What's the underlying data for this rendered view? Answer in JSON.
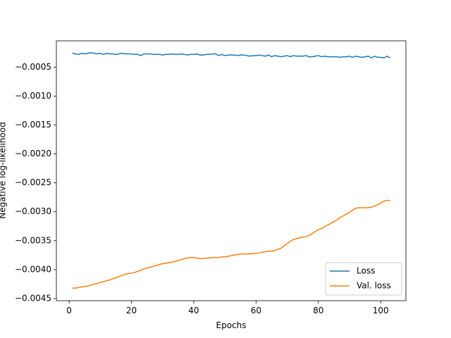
{
  "chart_data": {
    "type": "line",
    "xlabel": "Epochs",
    "ylabel": "Negative log-likelihood",
    "x": [
      1,
      2,
      3,
      4,
      5,
      6,
      7,
      8,
      9,
      10,
      11,
      12,
      13,
      14,
      15,
      16,
      17,
      18,
      19,
      20,
      21,
      22,
      23,
      24,
      25,
      26,
      27,
      28,
      29,
      30,
      31,
      32,
      33,
      34,
      35,
      36,
      37,
      38,
      39,
      40,
      41,
      42,
      43,
      44,
      45,
      46,
      47,
      48,
      49,
      50,
      51,
      52,
      53,
      54,
      55,
      56,
      57,
      58,
      59,
      60,
      61,
      62,
      63,
      64,
      65,
      66,
      67,
      68,
      69,
      70,
      71,
      72,
      73,
      74,
      75,
      76,
      77,
      78,
      79,
      80,
      81,
      82,
      83,
      84,
      85,
      86,
      87,
      88,
      89,
      90,
      91,
      92,
      93,
      94,
      95,
      96,
      97,
      98,
      99,
      100,
      101,
      102,
      103
    ],
    "series": [
      {
        "name": "Loss",
        "color": "#1f77b4",
        "values": [
          -0.00026,
          -0.00027,
          -0.00028,
          -0.00026,
          -0.00027,
          -0.00026,
          -0.00025,
          -0.00026,
          -0.00027,
          -0.00026,
          -0.00028,
          -0.00026,
          -0.00027,
          -0.00027,
          -0.00028,
          -0.00027,
          -0.00026,
          -0.00027,
          -0.00027,
          -0.00027,
          -0.00028,
          -0.00028,
          -0.0003,
          -0.00027,
          -0.00027,
          -0.00027,
          -0.00028,
          -0.00028,
          -0.00028,
          -0.00029,
          -0.00028,
          -0.00028,
          -0.00027,
          -0.00028,
          -0.00028,
          -0.00027,
          -0.00028,
          -0.00029,
          -0.00028,
          -0.00028,
          -0.00027,
          -0.00029,
          -0.00029,
          -0.00028,
          -0.00028,
          -0.00027,
          -0.00027,
          -0.0003,
          -0.00028,
          -0.0003,
          -0.00029,
          -0.00029,
          -0.00029,
          -0.0003,
          -0.00029,
          -0.00029,
          -0.0003,
          -0.00031,
          -0.0003,
          -0.0003,
          -0.00029,
          -0.0003,
          -0.00031,
          -0.00029,
          -0.00032,
          -0.0003,
          -0.00031,
          -0.00032,
          -0.00031,
          -0.0003,
          -0.00032,
          -0.0003,
          -0.00031,
          -0.00031,
          -0.00031,
          -0.0003,
          -0.00032,
          -0.00032,
          -0.00031,
          -0.0003,
          -0.00032,
          -0.00031,
          -0.00032,
          -0.00032,
          -0.00032,
          -0.00032,
          -0.00033,
          -0.00032,
          -0.00032,
          -0.00031,
          -0.00033,
          -0.00031,
          -0.00032,
          -0.00033,
          -0.00032,
          -0.00031,
          -0.00034,
          -0.00031,
          -0.00033,
          -0.00033,
          -0.00034,
          -0.00031,
          -0.00034
        ]
      },
      {
        "name": "Val. loss",
        "color": "#ff7f0e",
        "values": [
          -0.00432,
          -0.00432,
          -0.00431,
          -0.0043,
          -0.00429,
          -0.00428,
          -0.00427,
          -0.00425,
          -0.00424,
          -0.00422,
          -0.00421,
          -0.00419,
          -0.00418,
          -0.00416,
          -0.00414,
          -0.00412,
          -0.0041,
          -0.00408,
          -0.00407,
          -0.00406,
          -0.00405,
          -0.00403,
          -0.00401,
          -0.00399,
          -0.00397,
          -0.00396,
          -0.00394,
          -0.00393,
          -0.00391,
          -0.0039,
          -0.00389,
          -0.00388,
          -0.00387,
          -0.00386,
          -0.00384,
          -0.00383,
          -0.00381,
          -0.0038,
          -0.00379,
          -0.00379,
          -0.0038,
          -0.00381,
          -0.00381,
          -0.0038,
          -0.0038,
          -0.00379,
          -0.00379,
          -0.00379,
          -0.00378,
          -0.00378,
          -0.00377,
          -0.00376,
          -0.00375,
          -0.00374,
          -0.00373,
          -0.00373,
          -0.00373,
          -0.00373,
          -0.00372,
          -0.00372,
          -0.00371,
          -0.0037,
          -0.00369,
          -0.00368,
          -0.00368,
          -0.00367,
          -0.00365,
          -0.00363,
          -0.00359,
          -0.00355,
          -0.00351,
          -0.00348,
          -0.00346,
          -0.00345,
          -0.00344,
          -0.00343,
          -0.00341,
          -0.00338,
          -0.00334,
          -0.00331,
          -0.00329,
          -0.00326,
          -0.00323,
          -0.0032,
          -0.00317,
          -0.00314,
          -0.0031,
          -0.00307,
          -0.00304,
          -0.00301,
          -0.00297,
          -0.00294,
          -0.00293,
          -0.00293,
          -0.00293,
          -0.00293,
          -0.00292,
          -0.0029,
          -0.00288,
          -0.00285,
          -0.00282,
          -0.0028,
          -0.00281
        ]
      }
    ],
    "xlim": [
      -4.1,
      108.1
    ],
    "xticks": [
      0,
      20,
      40,
      60,
      80,
      100
    ],
    "ylim": [
      -0.004537,
      -4.5e-05
    ],
    "yticks": [
      {
        "value": -0.0005,
        "label": "−0.0005"
      },
      {
        "value": -0.001,
        "label": "−0.0010"
      },
      {
        "value": -0.0015,
        "label": "−0.0015"
      },
      {
        "value": -0.002,
        "label": "−0.0020"
      },
      {
        "value": -0.0025,
        "label": "−0.0025"
      },
      {
        "value": -0.003,
        "label": "−0.0030"
      },
      {
        "value": -0.0035,
        "label": "−0.0035"
      },
      {
        "value": -0.004,
        "label": "−0.0040"
      },
      {
        "value": -0.0045,
        "label": "−0.0045"
      }
    ],
    "legend": "lower right"
  }
}
